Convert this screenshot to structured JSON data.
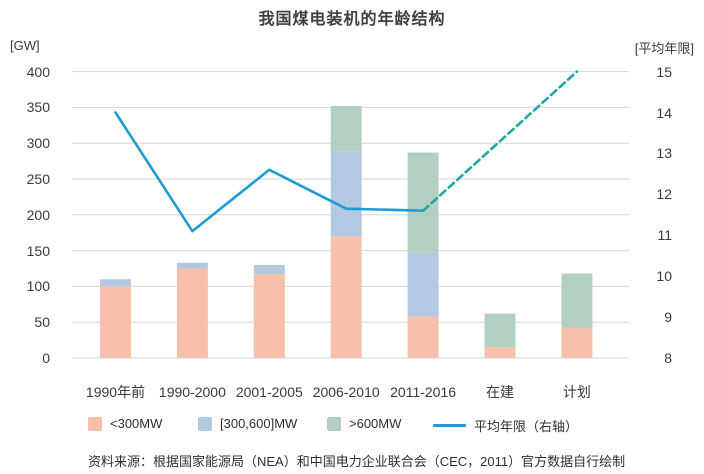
{
  "chart_data": {
    "type": "bar",
    "subtype": "stacked-bars-with-secondary-axis-line",
    "title": "我国煤电装机的年龄结构",
    "left_axis": {
      "label": "[GW]",
      "min": 0,
      "max": 400,
      "step": 50
    },
    "right_axis": {
      "label": "[平均年限]",
      "min": 8,
      "max": 15,
      "step": 1
    },
    "categories": [
      "1990年前",
      "1990-2000",
      "2001-2005",
      "2006-2010",
      "2011-2016",
      "在建",
      "计划"
    ],
    "series": [
      {
        "name": "<300MW",
        "color": "#F7C0AA",
        "values": [
          100,
          125,
          117,
          170,
          58,
          15,
          42
        ]
      },
      {
        "name": "[300,600]MW",
        "color": "#B3C9E2",
        "values": [
          10,
          8,
          13,
          118,
          89,
          0,
          0
        ]
      },
      {
        "name": ">600MW",
        "color": "#B2CFC0",
        "values": [
          0,
          0,
          0,
          64,
          140,
          47,
          76
        ]
      }
    ],
    "line": {
      "name": "平均年限（右轴）",
      "axis": "right",
      "color": "#1E9CD2",
      "dashed_color": "#21A6A3",
      "solid_values": [
        14,
        11.1,
        12.6,
        11.65,
        11.6
      ],
      "dashed_segment": {
        "from_index": 4,
        "from_value": 11.6,
        "to_index": 6,
        "to_value": 15
      }
    },
    "grid": "horizontal-only",
    "legend_position": "bottom",
    "footnote": "资料来源：根据国家能源局（NEA）和中国电力企业联合会（CEC，2011）官方数据自行绘制"
  },
  "colors": {
    "background": "#FFFFFF",
    "gridline": "#D6D6D6",
    "text": "#3A3A3A"
  }
}
